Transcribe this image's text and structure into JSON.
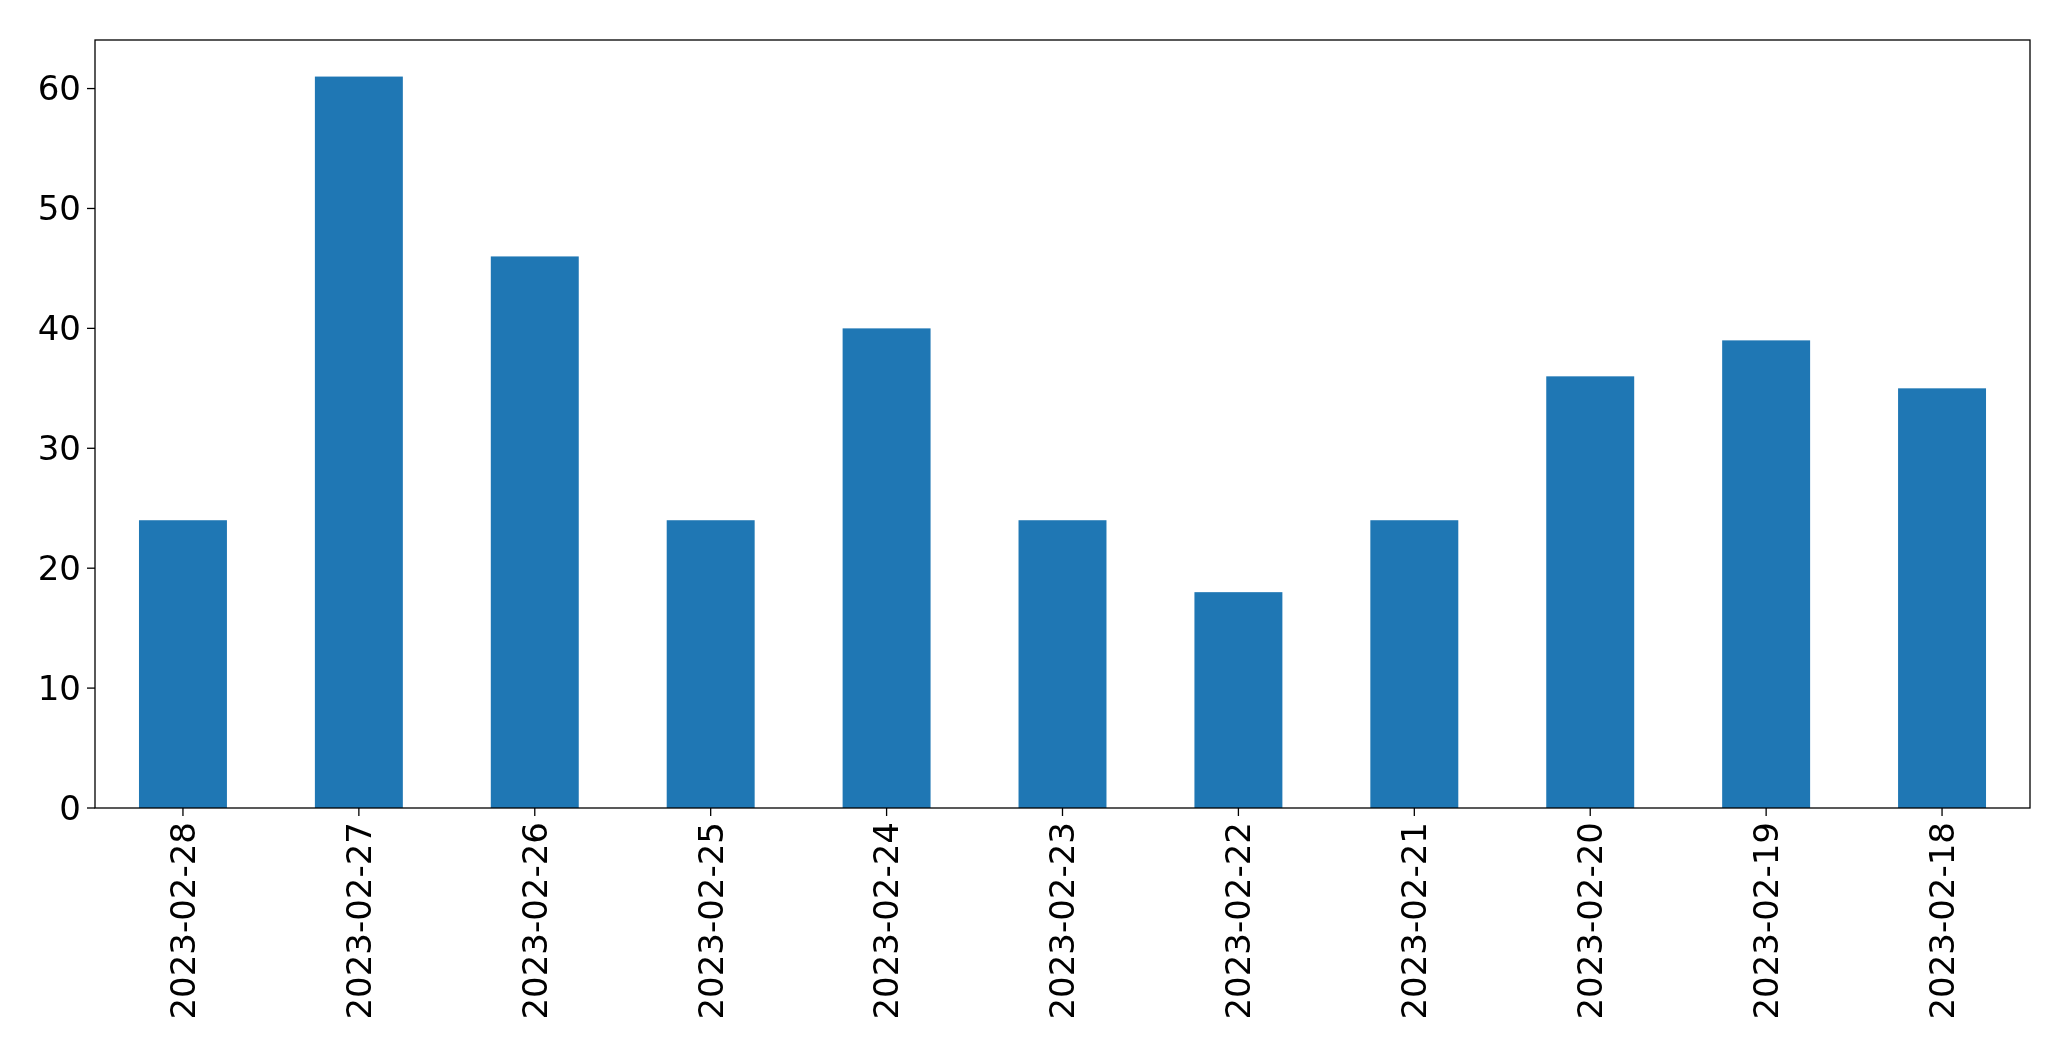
{
  "chart_data": {
    "type": "bar",
    "categories": [
      "2023-02-28",
      "2023-02-27",
      "2023-02-26",
      "2023-02-25",
      "2023-02-24",
      "2023-02-23",
      "2023-02-22",
      "2023-02-21",
      "2023-02-20",
      "2023-02-19",
      "2023-02-18"
    ],
    "values": [
      24,
      61,
      46,
      24,
      40,
      24,
      18,
      24,
      36,
      39,
      35
    ],
    "color": "#1f77b4",
    "ylim": [
      0,
      64.05
    ],
    "yticks": [
      0,
      10,
      20,
      30,
      40,
      50,
      60
    ],
    "grid": false
  }
}
